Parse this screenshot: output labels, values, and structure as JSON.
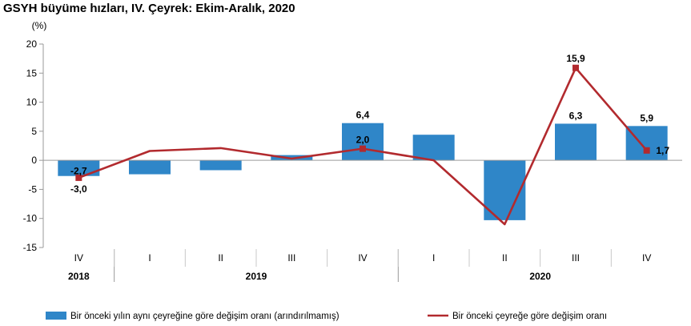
{
  "title": "GSYH büyüme hızları, IV. Çeyrek: Ekim-Aralık, 2020",
  "chart_data": {
    "type": "bar",
    "title": "GSYH büyüme hızları, IV. Çeyrek: Ekim-Aralık, 2020",
    "ylabel": "(%)",
    "ylim": [
      -15,
      20
    ],
    "yticks": [
      -15,
      -10,
      -5,
      0,
      5,
      10,
      15,
      20
    ],
    "categories": [
      "IV",
      "I",
      "II",
      "III",
      "IV",
      "I",
      "II",
      "III",
      "IV"
    ],
    "year_groups": [
      {
        "label": "2018",
        "span": 1
      },
      {
        "label": "2019",
        "span": 4
      },
      {
        "label": "2020",
        "span": 4
      }
    ],
    "series": [
      {
        "name": "Bir önceki yılın aynı çeyreğine göre değişim oranı (arındırılmamış)",
        "type": "bar",
        "color": "#2f86c8",
        "values": [
          -2.7,
          -2.4,
          -1.7,
          0.9,
          6.4,
          4.4,
          -10.3,
          6.3,
          5.9
        ],
        "labels": [
          "-2,7",
          "",
          "",
          "",
          "6,4",
          "",
          "",
          "6,3",
          "5,9"
        ]
      },
      {
        "name": "Bir önceki çeyreğe göre değişim oranı",
        "type": "line",
        "color": "#b22a2e",
        "values": [
          -3.0,
          1.6,
          2.1,
          0.3,
          2.0,
          0.0,
          -11.0,
          15.9,
          1.7
        ],
        "labels": [
          "-3,0",
          "",
          "",
          "",
          "2,0",
          "",
          "",
          "15,9",
          "1,7"
        ]
      }
    ],
    "grid": false,
    "legend_position": "bottom"
  }
}
